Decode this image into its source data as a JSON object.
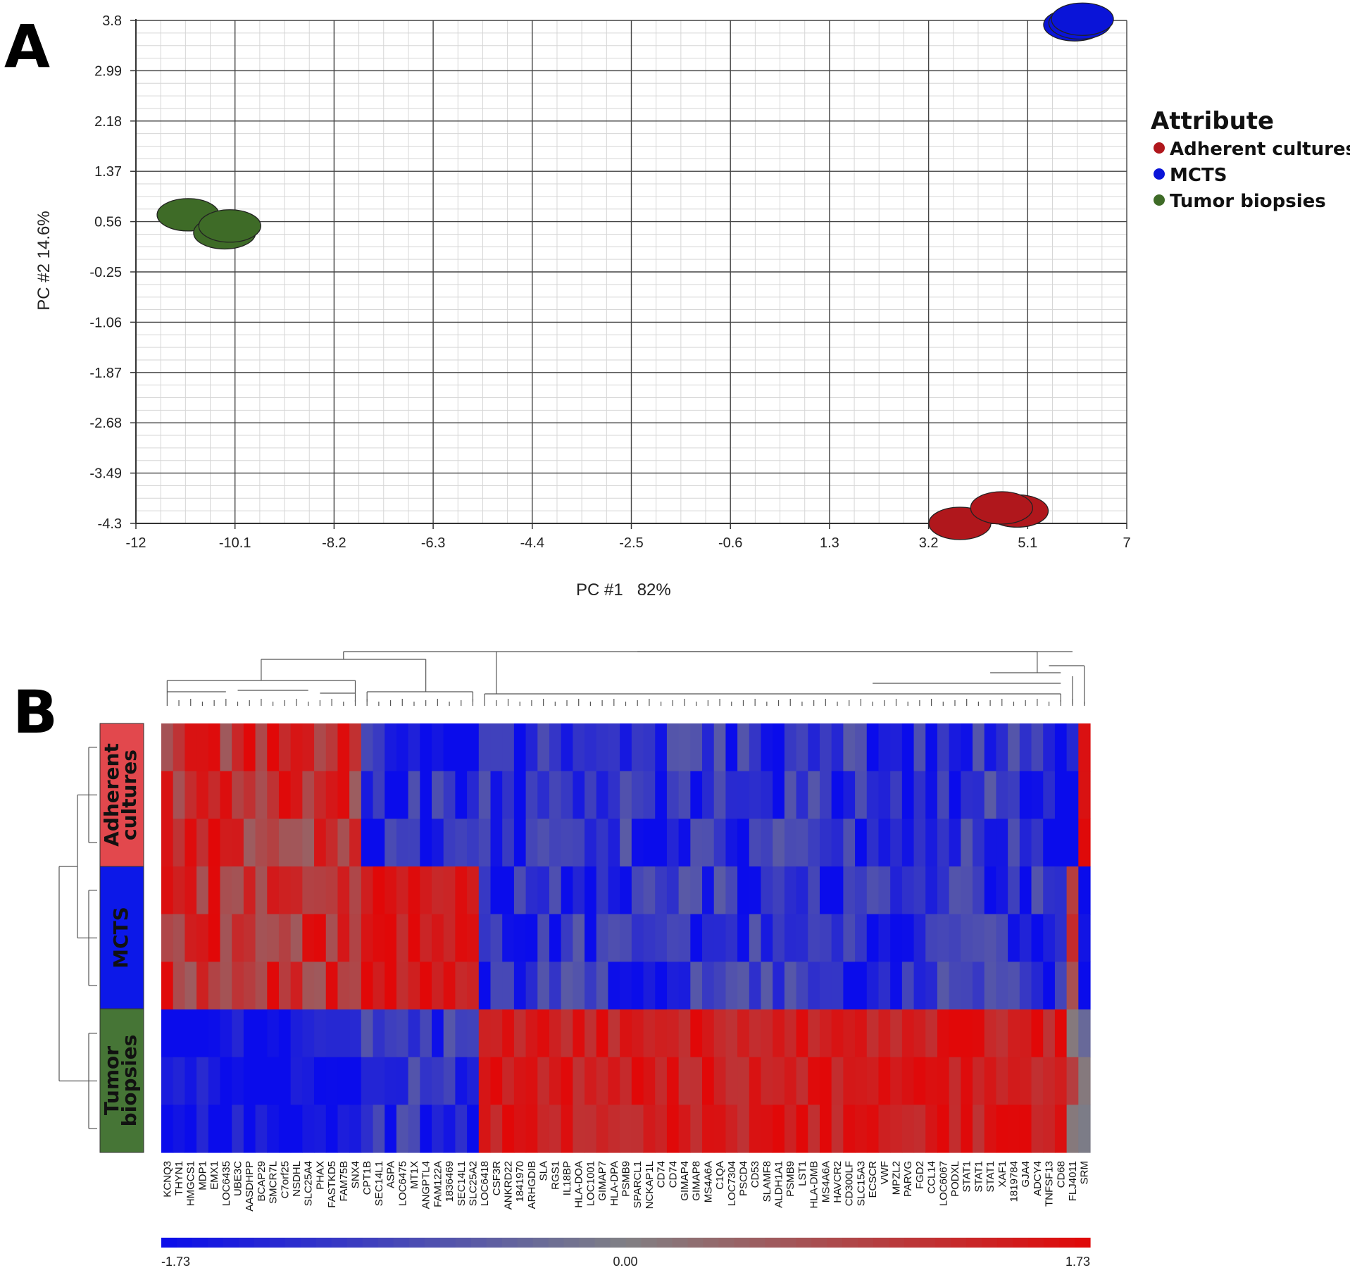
{
  "panels": [
    "A",
    "B"
  ],
  "chart_data": [
    {
      "type": "scatter",
      "xlabel": "PC #1   82%",
      "ylabel": "PC #2 14.6%",
      "xlim": [
        -12,
        7
      ],
      "ylim": [
        -4.3,
        3.8
      ],
      "xticks": [
        "-12",
        "-10.1",
        "-8.2",
        "-6.3",
        "-4.4",
        "-2.5",
        "-0.6",
        "1.3",
        "3.2",
        "5.1",
        "7"
      ],
      "yticks": [
        "3.8",
        "2.99",
        "2.18",
        "1.37",
        "0.56",
        "-0.25",
        "-1.06",
        "-1.87",
        "-2.68",
        "-3.49",
        "-4.3"
      ],
      "grid": true,
      "legend": {
        "title": "Attribute",
        "position": "right"
      },
      "series": [
        {
          "name": "Adherent cultures",
          "color": "#b0171c",
          "points": [
            [
              3.8,
              -4.3
            ],
            [
              4.9,
              -4.1
            ],
            [
              4.6,
              -4.05
            ]
          ]
        },
        {
          "name": "MCTS",
          "color": "#0a14d8",
          "points": [
            [
              6.0,
              3.73
            ],
            [
              6.1,
              3.76
            ],
            [
              6.15,
              3.82
            ]
          ]
        },
        {
          "name": "Tumor biopsies",
          "color": "#3e6b27",
          "points": [
            [
              -11.0,
              0.67
            ],
            [
              -10.3,
              0.38
            ],
            [
              -10.2,
              0.49
            ]
          ]
        }
      ]
    },
    {
      "type": "heatmap",
      "genes": [
        "KCNQ3",
        "THYN1",
        "HMGCS1",
        "MDP1",
        "EMX1",
        "LOC6435",
        "UBE3C",
        "AASDHPP",
        "BCAP29",
        "SMCR7L",
        "C7orf25",
        "NSDHL",
        "SLC25A4",
        "PHAX",
        "FASTKD5",
        "FAM75B",
        "SNX4",
        "CPT1B",
        "SEC14L1",
        "ASPA",
        "LOC6475",
        "MT1X",
        "ANGPTL4",
        "FAM122A",
        "1836469",
        "SEC14L1",
        "SLC25A2",
        "LOC6418",
        "CSF3R",
        "ANKRD22",
        "1841970",
        "ARHGDIB",
        "SLA",
        "RGS1",
        "IL18BP",
        "HLA-DOA",
        "LOC1001",
        "GIMAP7",
        "HLA-DPA",
        "PSMB9",
        "SPARCL1",
        "NCKAP1L",
        "CD74",
        "CD74",
        "GIMAP4",
        "GIMAP8",
        "MS4A6A",
        "C1QA",
        "LOC7304",
        "PSCD4",
        "CD53",
        "SLAMF8",
        "ALDH1A1",
        "PSMB9",
        "LST1",
        "HLA-DMB",
        "MS4A6A",
        "HAVCR2",
        "CD300LF",
        "SLC15A3",
        "ECSCR",
        "VWF",
        "MPZL2",
        "PARVG",
        "FGD2",
        "CCL14",
        "LOC6067",
        "PODXL",
        "STAT1",
        "STAT1",
        "STAT1",
        "XAF1",
        "1819784",
        "GJA4",
        "ADCY4",
        "TNFSF13",
        "CD68",
        "FLJ4011",
        "SRM"
      ],
      "groups": [
        {
          "line1": "Adherent",
          "line2": "cultures",
          "color": "#e2484d"
        },
        {
          "line1": "MCTS",
          "line2": "",
          "color": "#0c18e8"
        },
        {
          "line1": "Tumor",
          "line2": "biopsies",
          "color": "#467536"
        }
      ],
      "colorbar": {
        "min_label": "-1.73",
        "mid_label": "0.00",
        "max_label": "1.73",
        "min": -1.73,
        "max": 1.73
      },
      "row_pattern": {
        "adherent_genes_1_17": "+",
        "mcts_genes_18_27": "+",
        "immune_genes_28_77": "tumor +",
        "FLJ4011": "MCTS +",
        "SRM": "Adherent +"
      }
    }
  ]
}
